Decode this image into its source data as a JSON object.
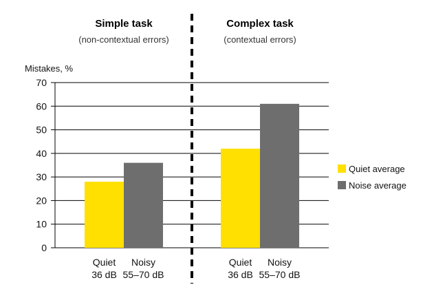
{
  "chart_data": {
    "type": "bar",
    "ylabel": "Mistakes, %",
    "ylim": [
      0,
      70
    ],
    "yticks": [
      0,
      10,
      20,
      30,
      40,
      50,
      60,
      70
    ],
    "grid": true,
    "legend_position": "right",
    "colors": {
      "quiet": "#ffe000",
      "noise": "#6d6e6d"
    },
    "series": [
      {
        "name": "Quiet average",
        "color": "#ffe000"
      },
      {
        "name": "Noise average",
        "color": "#6d6e6d"
      }
    ],
    "panels": [
      {
        "title": "Simple task",
        "subtitle": "(non-contextual errors)",
        "categories": [
          {
            "line1": "Quiet",
            "line2": "36 dB",
            "series": "Quiet average",
            "value": 28
          },
          {
            "line1": "Noisy",
            "line2": "55–70 dB",
            "series": "Noise average",
            "value": 36
          }
        ]
      },
      {
        "title": "Complex task",
        "subtitle": "(contextual errors)",
        "categories": [
          {
            "line1": "Quiet",
            "line2": "36 dB",
            "series": "Quiet average",
            "value": 42
          },
          {
            "line1": "Noisy",
            "line2": "55–70 dB",
            "series": "Noise average",
            "value": 61
          }
        ]
      }
    ]
  }
}
